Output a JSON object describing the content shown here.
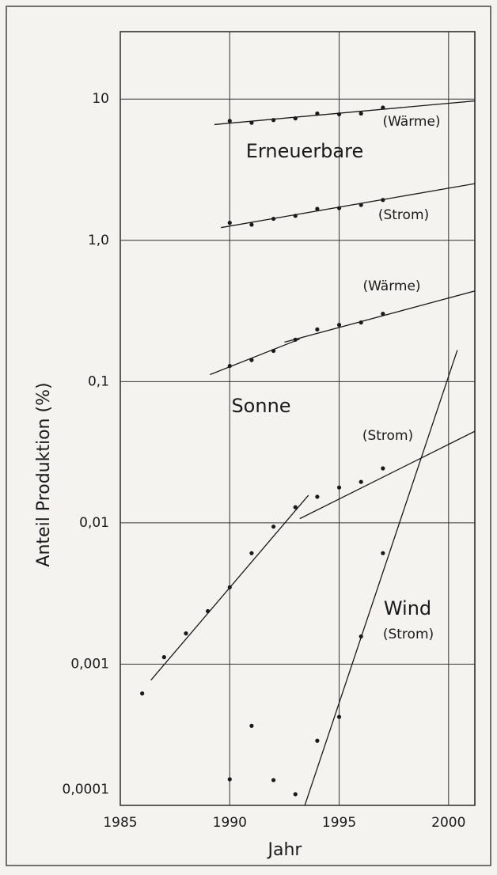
{
  "chart_data": {
    "type": "scatter",
    "y_label": "Anteil Produktion (%)",
    "x_label": "Jahr",
    "log_y": true,
    "grid": true,
    "color": "#1a1a1a",
    "xlim": [
      1985,
      2001.2
    ],
    "ylim": [
      0.0001,
      30
    ],
    "xticks": [
      1985,
      1990,
      1995,
      2000
    ],
    "yticks": [
      10,
      {
        "value": 1,
        "label": "1,0"
      },
      {
        "value": 0.1,
        "label": "0,1"
      },
      {
        "value": 0.01,
        "label": "0,01"
      },
      {
        "value": 0.001,
        "label": "0,001"
      },
      {
        "value": 0.0001,
        "label": "0,0001"
      }
    ],
    "annotations": [
      "(Wärme)",
      "Erneuerbare",
      "(Strom)",
      "(Wärme)",
      "Sonne",
      "(Strom)",
      "Wind",
      "(Strom)"
    ],
    "series": [
      {
        "x": [
          1990,
          1991,
          1992,
          1993,
          1994,
          1995,
          1996,
          1997
        ],
        "values": [
          7.0,
          6.8,
          7.1,
          7.3,
          7.9,
          7.8,
          7.9,
          8.7
        ],
        "fits": [
          {
            "x": [
              1989.3,
              2001.2
            ],
            "values": [
              6.6,
              9.7
            ]
          }
        ]
      },
      {
        "x": [
          1990,
          1991,
          1992,
          1993,
          1994,
          1995,
          1996,
          1997
        ],
        "values": [
          1.33,
          1.29,
          1.42,
          1.49,
          1.67,
          1.69,
          1.78,
          1.93
        ],
        "fits": [
          {
            "x": [
              1989.6,
              2001.2
            ],
            "values": [
              1.23,
              2.52
            ]
          }
        ]
      },
      {
        "x": [
          1990,
          1991,
          1992,
          1993,
          1994,
          1995,
          1996,
          1997
        ],
        "values": [
          0.129,
          0.142,
          0.165,
          0.198,
          0.234,
          0.252,
          0.262,
          0.302
        ],
        "fits": [
          {
            "x": [
              1989.1,
              1993.2
            ],
            "values": [
              0.112,
              0.2
            ]
          },
          {
            "x": [
              1992.5,
              2001.2
            ],
            "values": [
              0.19,
              0.438
            ]
          }
        ]
      },
      {
        "x": [
          1986,
          1987,
          1988,
          1989,
          1990,
          1991,
          1992,
          1993,
          1994,
          1995,
          1996,
          1997
        ],
        "values": [
          0.00062,
          0.00112,
          0.00165,
          0.00237,
          0.0035,
          0.0061,
          0.0094,
          0.0129,
          0.0153,
          0.0178,
          0.0195,
          0.0243
        ],
        "fits": [
          {
            "x": [
              1986.4,
              1993.6
            ],
            "values": [
              0.00077,
              0.0157
            ]
          },
          {
            "x": [
              1993.2,
              2001.2
            ],
            "values": [
              0.0107,
              0.0445
            ]
          }
        ]
      },
      {
        "x": [
          1990,
          1991,
          1992,
          1993,
          1994,
          1995,
          1996,
          1997
        ],
        "values": [
          0.000153,
          0.000366,
          0.000151,
          0.00012,
          0.000287,
          0.000423,
          0.00157,
          0.0061
        ],
        "fits": [
          {
            "x": [
              1993.3,
              2000.4
            ],
            "values": [
              8.7e-05,
              0.167
            ]
          }
        ]
      }
    ]
  }
}
